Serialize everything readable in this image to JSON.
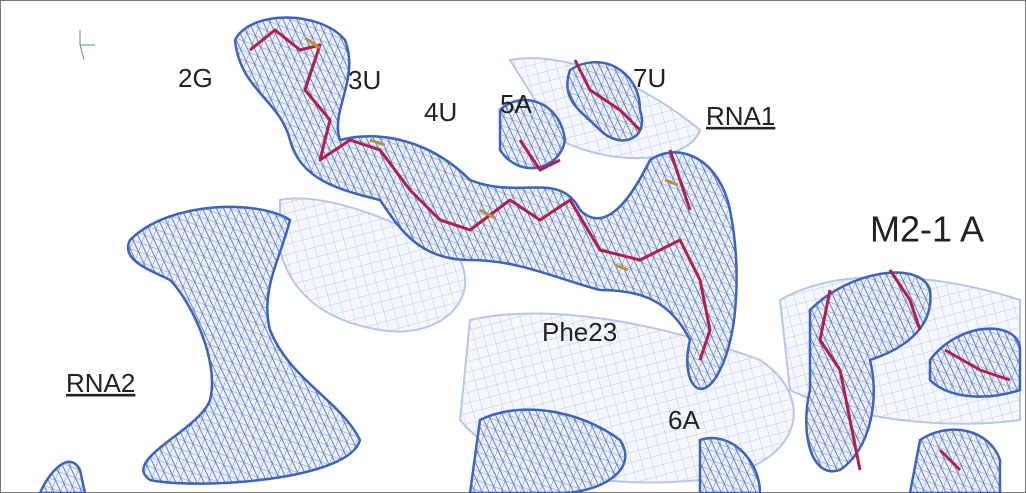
{
  "residues": [
    "2G",
    "3U",
    "4U",
    "5A",
    "7U",
    "Phe23",
    "6A"
  ],
  "chains": [
    "RNA1",
    "RNA2",
    "M2-1 A"
  ]
}
